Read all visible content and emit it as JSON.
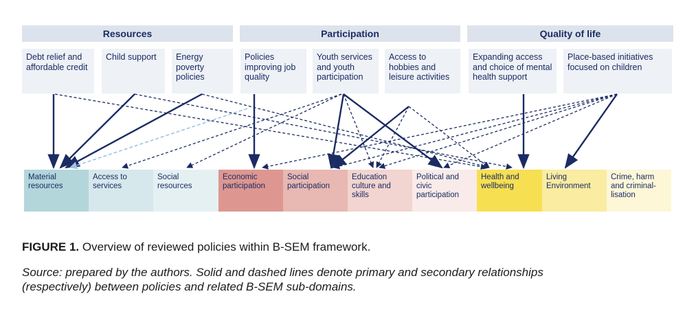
{
  "headers": {
    "resources": "Resources",
    "participation": "Participation",
    "quality_of_life": "Quality of life"
  },
  "policies": {
    "debt_relief": "Debt relief and affordable credit",
    "child_support": "Child support",
    "energy_poverty": "Energy poverty policies",
    "job_quality": "Policies improving job quality",
    "youth_services": "Youth services and youth participation",
    "hobbies": "Access to hobbies and leisure activities",
    "mental_health": "Expanding access and choice of mental health support",
    "place_based": "Place-based initiatives focused on children"
  },
  "domains": [
    {
      "label": "Material resources",
      "color": "#b3d6db"
    },
    {
      "label": "Access to services",
      "color": "#d6e8ec"
    },
    {
      "label": "Social resources",
      "color": "#e5f0f3"
    },
    {
      "label": "Economic participation",
      "color": "#dd9790"
    },
    {
      "label": "Social participation",
      "color": "#e8b8b2"
    },
    {
      "label": "Education culture and skills",
      "color": "#f2d4d0"
    },
    {
      "label": "Political and civic participation",
      "color": "#f9ebe9"
    },
    {
      "label": "Health and wellbeing",
      "color": "#f7df52"
    },
    {
      "label": "Living Environment",
      "color": "#faeca0"
    },
    {
      "label": "Crime, harm and criminal-lisation",
      "color": "#fdf7d8"
    }
  ],
  "caption": {
    "figure_label": "FIGURE 1.",
    "figure_text": " Overview of reviewed policies within B-SEM framework.",
    "source_label": "Source",
    "source_text": ": prepared by the authors. Solid and dashed lines denote primary and secondary relationships (respectively) between policies and related B-SEM sub-domains."
  },
  "colors": {
    "arrow": "#1b2b63",
    "arrow_light": "#9fc3e0",
    "header_bg": "#dde3ec",
    "policy_bg": "#eef1f5"
  }
}
